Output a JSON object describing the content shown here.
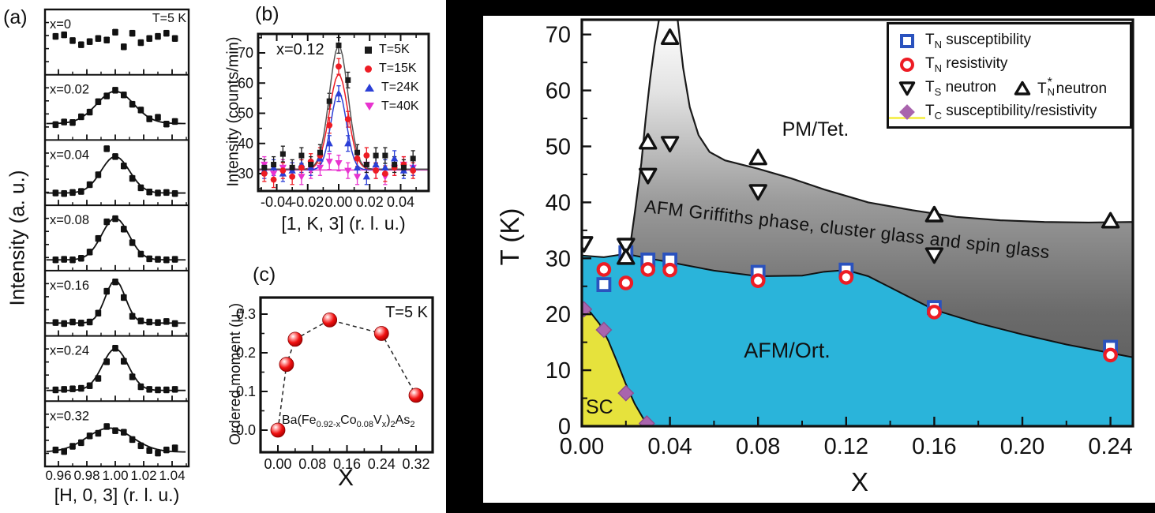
{
  "chart_data": [
    {
      "id": "panel_a",
      "type": "scatter",
      "panel_label": "(a)",
      "title_note": "T=5 K",
      "xlabel": "[H, 0, 3] (r. l. u.)",
      "ylabel": "Intensity (a. u.)",
      "xlim": [
        0.9506,
        1.0517
      ],
      "x_ticks": [
        0.96,
        0.98,
        1.0,
        1.02,
        1.04
      ],
      "x_minor_ticks": [
        0.95,
        0.97,
        0.99,
        1.01,
        1.03,
        1.05
      ],
      "h": [
        0.958,
        0.964,
        0.97,
        0.976,
        0.982,
        0.988,
        0.994,
        1.0,
        1.006,
        1.012,
        1.018,
        1.024,
        1.03,
        1.036,
        1.042
      ],
      "err": 0.055,
      "rows": [
        {
          "label": "x=0",
          "fit": null,
          "y": [
            0.6,
            0.63,
            0.52,
            0.44,
            0.5,
            0.56,
            0.53,
            0.68,
            0.4,
            0.66,
            0.48,
            0.56,
            0.6,
            0.66,
            0.56
          ]
        },
        {
          "label": "x=0.02",
          "fit": {
            "amp": 0.62,
            "center": 1.0,
            "sigma": 0.013,
            "base": 0.18
          },
          "y": [
            0.16,
            0.21,
            0.2,
            0.31,
            0.4,
            0.6,
            0.71,
            0.82,
            0.73,
            0.55,
            0.44,
            0.27,
            0.3,
            0.17,
            0.22
          ]
        },
        {
          "label": "x=0.04",
          "fit": {
            "amp": 0.7,
            "center": 1.0,
            "sigma": 0.01,
            "base": 0.1
          },
          "y": [
            0.1,
            0.09,
            0.11,
            0.13,
            0.26,
            0.45,
            0.95,
            0.8,
            0.62,
            0.38,
            0.2,
            0.12,
            0.1,
            0.11,
            0.09
          ]
        },
        {
          "label": "x=0.08",
          "fit": {
            "amp": 0.8,
            "center": 1.0,
            "sigma": 0.0095,
            "base": 0.07
          },
          "y": [
            0.07,
            0.08,
            0.07,
            0.1,
            0.22,
            0.48,
            0.8,
            0.86,
            0.66,
            0.4,
            0.18,
            0.09,
            0.08,
            0.07,
            0.08
          ]
        },
        {
          "label": "x=0.16",
          "fit": {
            "amp": 0.82,
            "center": 1.0,
            "sigma": 0.007,
            "base": 0.11
          },
          "y": [
            0.12,
            0.1,
            0.13,
            0.11,
            0.13,
            0.3,
            0.72,
            0.9,
            0.6,
            0.24,
            0.15,
            0.13,
            0.12,
            0.14,
            0.1
          ]
        },
        {
          "label": "x=0.24",
          "fit": {
            "amp": 0.8,
            "center": 1.0,
            "sigma": 0.009,
            "base": 0.07
          },
          "y": [
            0.08,
            0.09,
            0.1,
            0.11,
            0.16,
            0.3,
            0.62,
            0.88,
            0.63,
            0.33,
            0.14,
            0.09,
            0.08,
            0.08,
            0.09
          ]
        },
        {
          "label": "x=0.32",
          "fit": {
            "amp": 0.46,
            "center": 0.996,
            "sigma": 0.016,
            "base": 0.14
          },
          "y": [
            0.18,
            0.15,
            0.25,
            0.32,
            0.45,
            0.5,
            0.63,
            0.55,
            0.52,
            0.38,
            0.26,
            0.17,
            0.12,
            0.18,
            0.22
          ]
        }
      ]
    },
    {
      "id": "panel_b",
      "type": "scatter",
      "panel_label": "(b)",
      "annotation": "x=0.12",
      "xlabel": "[1, K, 3] (r. l. u.)",
      "ylabel": "Intensity (counts/min)",
      "xlim": [
        -0.052,
        0.059
      ],
      "ylim": [
        24.2,
        76.3
      ],
      "x_ticks": [
        -0.04,
        -0.02,
        0.0,
        0.02,
        0.04
      ],
      "y_ticks": [
        30,
        40,
        50,
        60,
        70
      ],
      "x_minor_ticks": [
        -0.05,
        -0.03,
        -0.01,
        0.01,
        0.03,
        0.05
      ],
      "y_minor_ticks": [
        25,
        35,
        45,
        55,
        65,
        75
      ],
      "k": [
        -0.048,
        -0.042,
        -0.036,
        -0.03,
        -0.024,
        -0.018,
        -0.012,
        -0.006,
        0.0,
        0.006,
        0.012,
        0.018,
        0.024,
        0.03,
        0.036,
        0.042,
        0.048
      ],
      "err": 2.6,
      "series": [
        {
          "name": "T=5K",
          "color": "#1a1a1a",
          "curve_color": "#555555",
          "marker": "square",
          "fit": {
            "amp": 41.0,
            "center": 0,
            "sigma": 0.006,
            "base": 31.5
          },
          "y": [
            32,
            33,
            36.5,
            32,
            36,
            33,
            37,
            54,
            72.5,
            61,
            37,
            33,
            36,
            36,
            33,
            32,
            35
          ]
        },
        {
          "name": "T=15K",
          "color": "#ed1c24",
          "curve_color": "#ed1c24",
          "marker": "circle",
          "fit": {
            "amp": 31.5,
            "center": 0,
            "sigma": 0.006,
            "base": 31.4
          },
          "y": [
            30,
            28,
            31,
            29,
            32,
            34,
            36,
            46,
            65.5,
            48,
            35,
            36,
            31,
            30,
            32,
            33,
            31
          ]
        },
        {
          "name": "T=24K",
          "color": "#2b3fd6",
          "curve_color": "#2b3fd6",
          "marker": "triangle-up",
          "fit": {
            "amp": 25.8,
            "center": 0,
            "sigma": 0.005,
            "base": 31.3
          },
          "y": [
            31,
            32,
            30,
            31,
            33,
            32,
            35,
            40,
            56.5,
            40,
            32,
            29,
            33,
            32,
            35,
            31,
            32
          ]
        },
        {
          "name": "T=40K",
          "color": "#e833cf",
          "curve_color": "#e833cf",
          "marker": "triangle-down",
          "fit": {
            "amp": 0.0,
            "center": 0,
            "sigma": 0.005,
            "base": 31.2
          },
          "y": [
            33,
            30,
            32,
            31,
            29,
            31,
            32,
            34,
            33.5,
            31,
            29,
            33,
            31,
            29,
            32,
            33,
            32
          ]
        }
      ]
    },
    {
      "id": "panel_c",
      "type": "scatter",
      "panel_label": "(c)",
      "annotation": "T=5 K",
      "xlabel": "X",
      "ylabel_pre": "Ordered moment (μ",
      "ylabel_sub": "B",
      "ylabel_post": ")",
      "formula_parts": [
        {
          "t": "Ba(Fe"
        },
        {
          "s": "0.92-x"
        },
        {
          "t": "Co"
        },
        {
          "s": "0.08"
        },
        {
          "t": "V"
        },
        {
          "s": "x"
        },
        {
          "t": ")"
        },
        {
          "s": "2"
        },
        {
          "t": "As"
        },
        {
          "s": "2"
        }
      ],
      "xlim": [
        -0.04,
        0.358
      ],
      "ylim": [
        -0.057,
        0.343
      ],
      "x_ticks": [
        0.0,
        0.08,
        0.16,
        0.24,
        0.32
      ],
      "y_ticks": [
        0.0,
        0.1,
        0.2,
        0.3
      ],
      "x_minor_ticks": [
        0.04,
        0.12,
        0.2,
        0.28
      ],
      "y_minor_ticks": [
        0.05,
        0.15,
        0.25
      ],
      "marker_color": "#f01010",
      "points": [
        [
          0.0,
          0.0
        ],
        [
          0.02,
          0.17
        ],
        [
          0.04,
          0.235
        ],
        [
          0.12,
          0.285
        ],
        [
          0.24,
          0.25
        ],
        [
          0.32,
          0.09
        ]
      ]
    },
    {
      "id": "phase_diagram",
      "type": "scatter",
      "xlabel": "X",
      "ylabel": "T (K)",
      "xlim": [
        0,
        0.2502
      ],
      "ylim": [
        0,
        72.6
      ],
      "x_ticks": [
        0.0,
        0.04,
        0.08,
        0.12,
        0.16,
        0.2,
        0.24
      ],
      "y_ticks": [
        0,
        10,
        20,
        30,
        40,
        50,
        60,
        70
      ],
      "x_minor_ticks": [
        0.02,
        0.06,
        0.1,
        0.14,
        0.18,
        0.22
      ],
      "y_minor_ticks": [
        5,
        15,
        25,
        35,
        45,
        55,
        65
      ],
      "labels": {
        "pm": "PM/Tet.",
        "griffiths": "AFM Griffiths phase, cluster glass and spin glass",
        "afm": "AFM/Ort.",
        "sc": "SC"
      },
      "regions": {
        "colors": {
          "afm": "#2ab4da",
          "sc": "#e6e23c",
          "griffiths_top": "#ffffff",
          "griffiths_bottom": "#565656"
        },
        "afm_boundary": [
          [
            0,
            30.5
          ],
          [
            0.01,
            30.2
          ],
          [
            0.02,
            30.8
          ],
          [
            0.03,
            30.0
          ],
          [
            0.04,
            29.3
          ],
          [
            0.06,
            27.8
          ],
          [
            0.08,
            26.8
          ],
          [
            0.1,
            26.9
          ],
          [
            0.11,
            27.6
          ],
          [
            0.12,
            27.9
          ],
          [
            0.13,
            26.8
          ],
          [
            0.14,
            24.8
          ],
          [
            0.16,
            20.8
          ],
          [
            0.18,
            18.4
          ],
          [
            0.2,
            16.4
          ],
          [
            0.22,
            14.6
          ],
          [
            0.2502,
            12.3
          ]
        ],
        "griffiths_top": [
          [
            0.0215,
            31.0
          ],
          [
            0.024,
            38
          ],
          [
            0.027,
            47
          ],
          [
            0.029,
            55
          ],
          [
            0.031,
            62
          ],
          [
            0.033,
            68
          ],
          [
            0.035,
            72.6
          ],
          [
            0.0435,
            72.6
          ],
          [
            0.046,
            64
          ],
          [
            0.049,
            57
          ],
          [
            0.053,
            52
          ],
          [
            0.058,
            49
          ],
          [
            0.065,
            47.5
          ],
          [
            0.08,
            46
          ],
          [
            0.095,
            44.3
          ],
          [
            0.11,
            42.3
          ],
          [
            0.13,
            40
          ],
          [
            0.15,
            38.6
          ],
          [
            0.17,
            37.4
          ],
          [
            0.19,
            36.8
          ],
          [
            0.21,
            36.5
          ],
          [
            0.23,
            36.4
          ],
          [
            0.2502,
            36.5
          ]
        ],
        "sc_boundary": [
          [
            0,
            21.3
          ],
          [
            0.004,
            20.3
          ],
          [
            0.008,
            18.3
          ],
          [
            0.012,
            15.3
          ],
          [
            0.016,
            11.5
          ],
          [
            0.02,
            7.5
          ],
          [
            0.024,
            4.0
          ],
          [
            0.028,
            1.3
          ],
          [
            0.0315,
            0
          ]
        ]
      },
      "series": [
        {
          "name": "tn_susceptibility",
          "marker": "open-square",
          "color": "#2a52be",
          "points": [
            [
              0.01,
              25.3
            ],
            [
              0.02,
              31.0
            ],
            [
              0.03,
              29.7
            ],
            [
              0.04,
              29.7
            ],
            [
              0.08,
              27.5
            ],
            [
              0.12,
              27.9
            ],
            [
              0.16,
              21.2
            ],
            [
              0.24,
              14.1
            ]
          ]
        },
        {
          "name": "tn_resistivity",
          "marker": "open-circle",
          "color": "#ed1c24",
          "points": [
            [
              0.01,
              28.0
            ],
            [
              0.02,
              25.6
            ],
            [
              0.03,
              28.0
            ],
            [
              0.04,
              27.9
            ],
            [
              0.08,
              26.0
            ],
            [
              0.12,
              26.6
            ],
            [
              0.16,
              20.4
            ],
            [
              0.24,
              12.7
            ]
          ]
        },
        {
          "name": "ts_neutron",
          "marker": "open-triangle-down",
          "color": "#111111",
          "points": [
            [
              0.001,
              32.6
            ],
            [
              0.02,
              32.3
            ],
            [
              0.03,
              44.8
            ],
            [
              0.04,
              50.5
            ],
            [
              0.08,
              41.9
            ],
            [
              0.16,
              30.6
            ]
          ]
        },
        {
          "name": "tnstar_neutron",
          "marker": "open-triangle-up",
          "color": "#111111",
          "points": [
            [
              0.02,
              30.2
            ],
            [
              0.03,
              50.8
            ],
            [
              0.04,
              69.5
            ],
            [
              0.08,
              48.0
            ],
            [
              0.16,
              37.8
            ],
            [
              0.24,
              36.7
            ]
          ]
        },
        {
          "name": "tc",
          "marker": "diamond",
          "color": "#a964ad",
          "points": [
            [
              0.001,
              20.9
            ],
            [
              0.01,
              17.2
            ],
            [
              0.02,
              5.9
            ],
            [
              0.0295,
              0.5
            ]
          ]
        }
      ],
      "legend": [
        {
          "sym": "T",
          "sub": "N",
          "star": "",
          "label": "susceptibility",
          "marker": "open-square",
          "color": "#2a52be"
        },
        {
          "sym": "T",
          "sub": "N",
          "star": "",
          "label": "resistivity",
          "marker": "open-circle",
          "color": "#ed1c24"
        },
        {
          "sym": "T",
          "sub": "S",
          "star": "",
          "label": "neutron",
          "marker": "open-triangle-down",
          "color": "#111111"
        },
        {
          "sym": "T",
          "sub": "N",
          "star": "*",
          "label": "neutron",
          "marker": "open-triangle-up",
          "color": "#111111"
        },
        {
          "sym": "T",
          "sub": "C",
          "star": "",
          "label": "susceptibility/resistivity",
          "marker": "diamond",
          "color": "#a964ad",
          "line_color": "#f5ef5a"
        }
      ]
    }
  ]
}
